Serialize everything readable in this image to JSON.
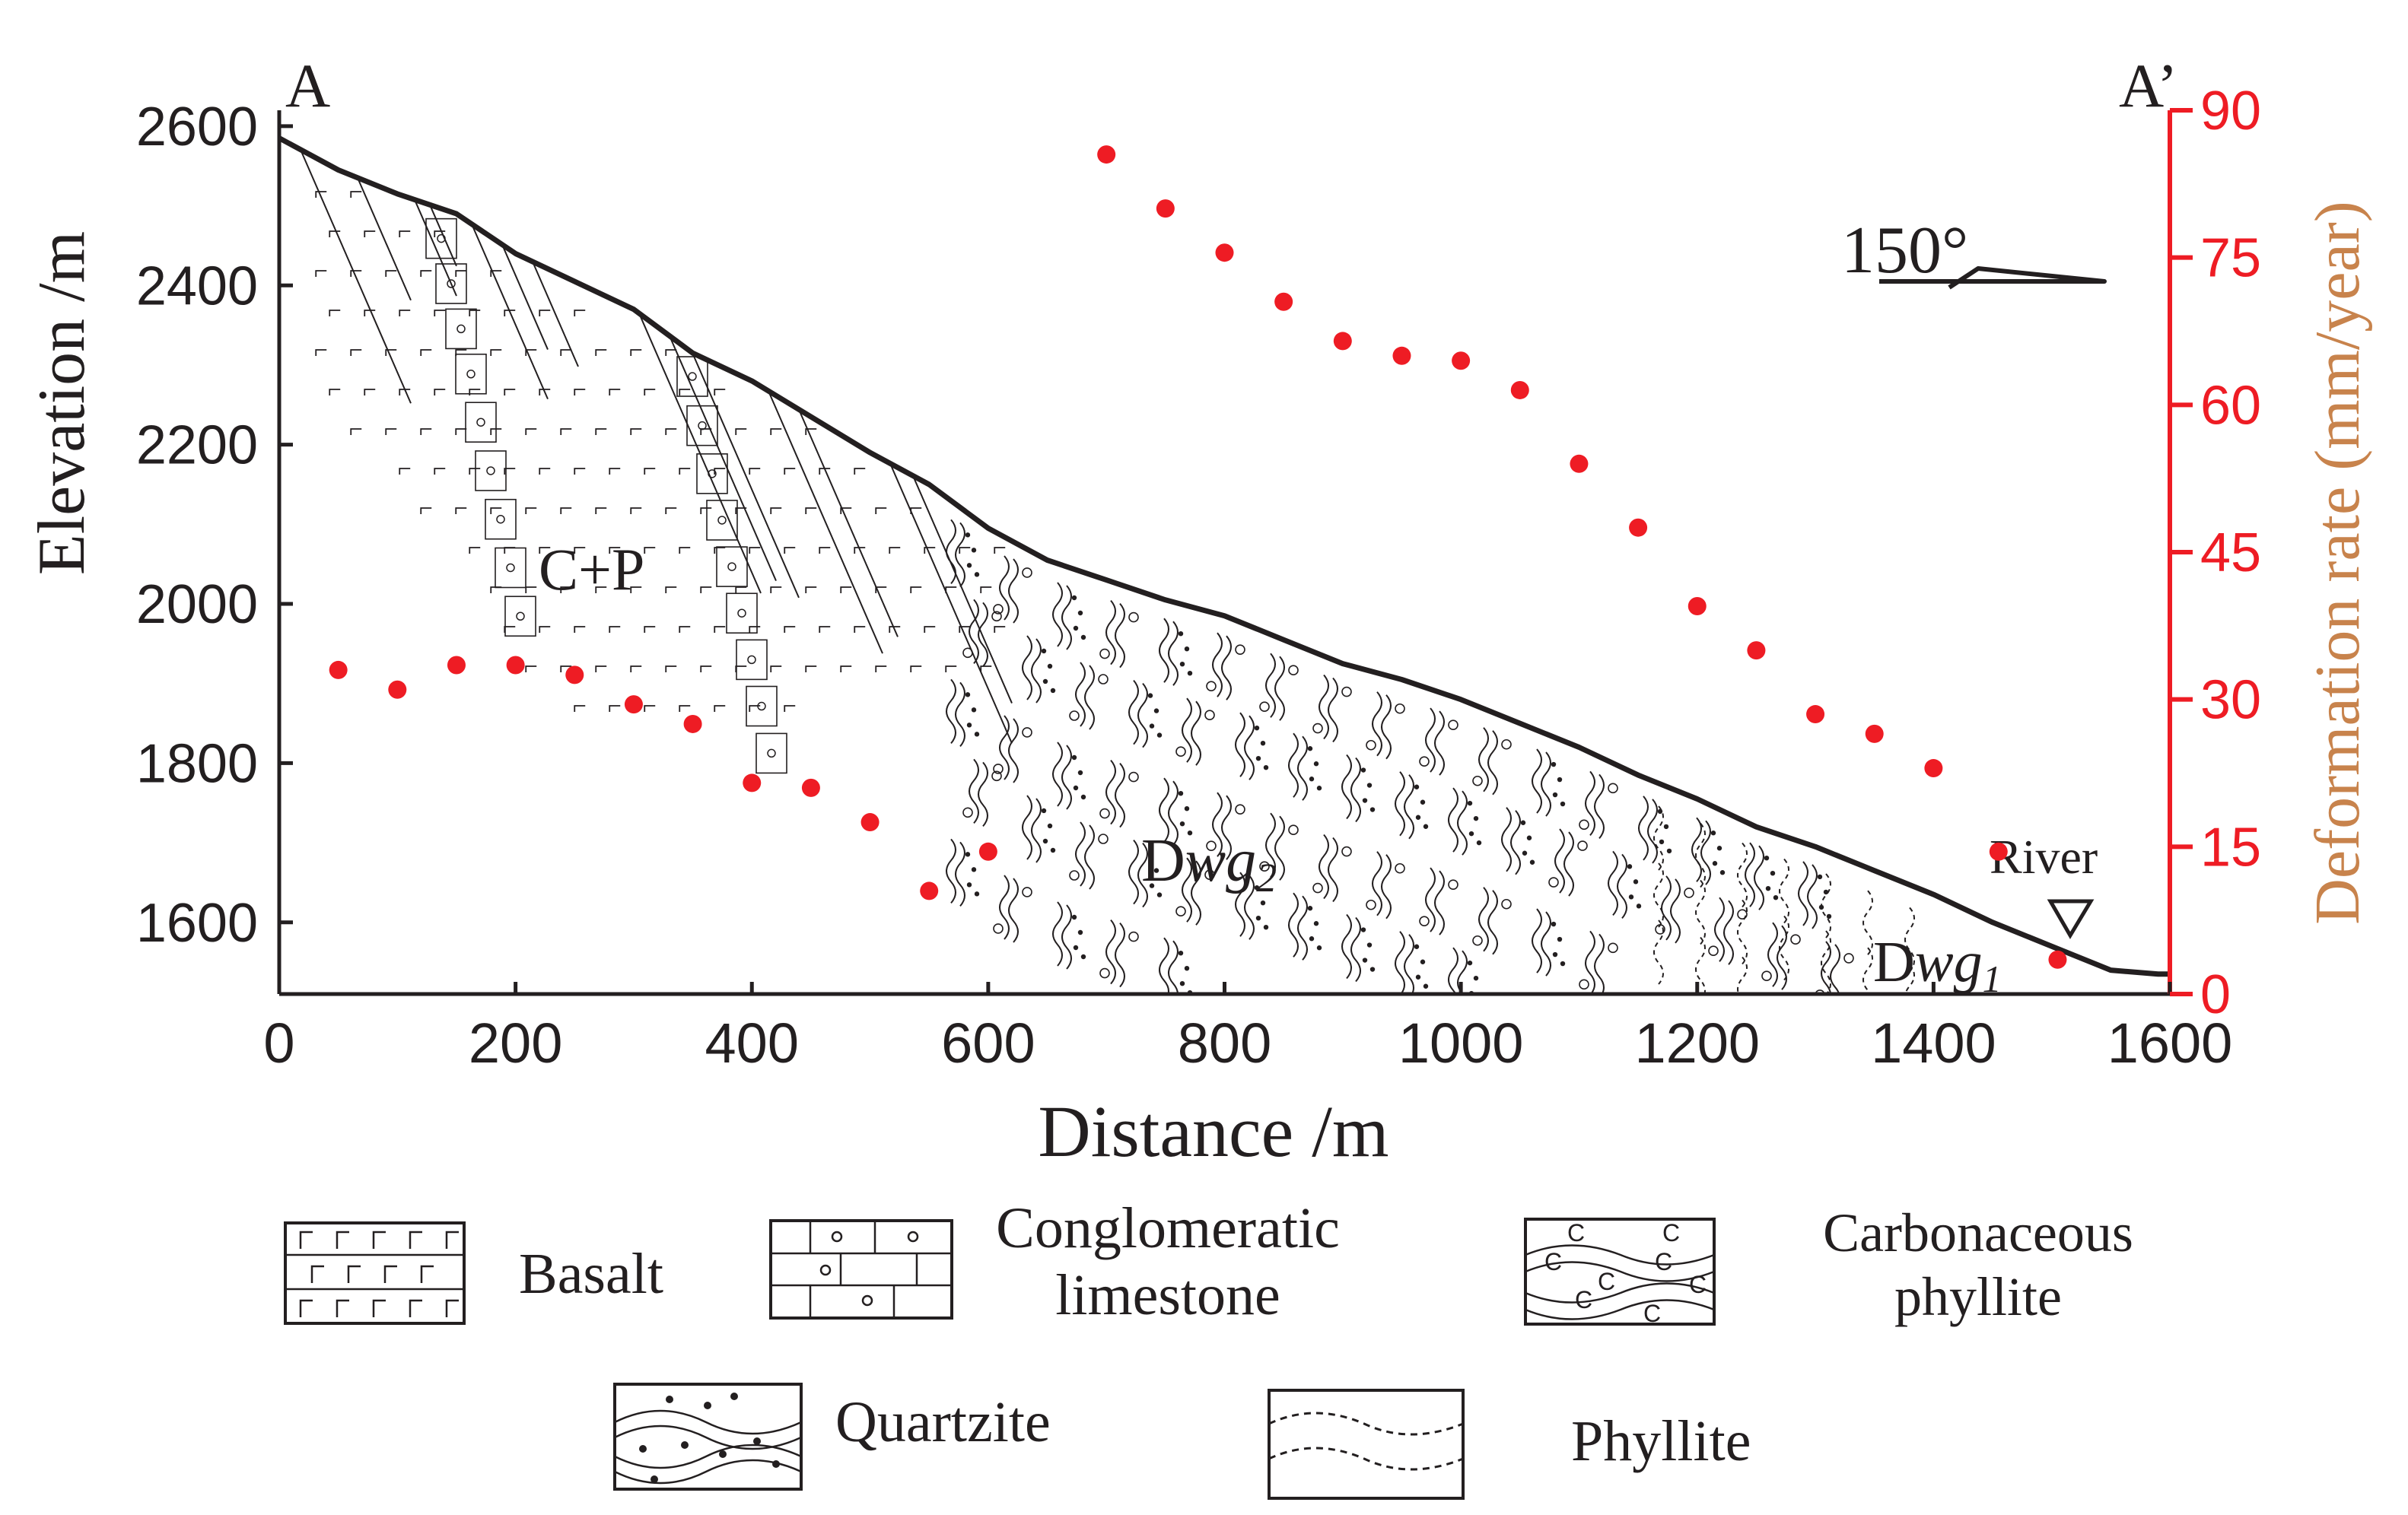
{
  "chart_data": {
    "type": "scatter",
    "title": "",
    "section_start_label": "A",
    "section_end_label": "A’",
    "xlabel": "Distance /m",
    "ylabel": "Elevation /m",
    "y2label": "Deformation rate (mm/year)",
    "xlim": [
      0,
      1600
    ],
    "ylim": [
      1510,
      2620
    ],
    "y2lim": [
      0,
      90
    ],
    "xticks": [
      0,
      200,
      400,
      600,
      800,
      1000,
      1200,
      1400,
      1600
    ],
    "yticks": [
      1600,
      1800,
      2000,
      2200,
      2400,
      2600
    ],
    "y2ticks": [
      0,
      15,
      30,
      45,
      60,
      75,
      90
    ],
    "colors": {
      "profile": "#231f20",
      "points": "#ee1c24",
      "right_axis": "#ee1c24",
      "right_label": "#c8834c"
    },
    "profile": {
      "name": "Ground surface",
      "x": [
        0,
        50,
        100,
        150,
        200,
        250,
        300,
        350,
        400,
        450,
        500,
        550,
        600,
        650,
        700,
        750,
        800,
        850,
        900,
        950,
        1000,
        1050,
        1100,
        1150,
        1200,
        1250,
        1300,
        1350,
        1400,
        1450,
        1500,
        1550,
        1590,
        1600
      ],
      "elevation": [
        2585,
        2545,
        2515,
        2490,
        2440,
        2405,
        2370,
        2315,
        2280,
        2235,
        2190,
        2150,
        2095,
        2055,
        2030,
        2005,
        1985,
        1955,
        1925,
        1905,
        1880,
        1850,
        1820,
        1785,
        1755,
        1720,
        1695,
        1665,
        1635,
        1600,
        1570,
        1540,
        1535,
        1535
      ]
    },
    "series": [
      {
        "name": "Deformation rate",
        "x": [
          50,
          100,
          150,
          200,
          250,
          300,
          350,
          400,
          450,
          500,
          550,
          600,
          700,
          750,
          800,
          850,
          900,
          950,
          1000,
          1050,
          1100,
          1150,
          1200,
          1250,
          1300,
          1350,
          1400,
          1455,
          1505
        ],
        "values": [
          33,
          31,
          33.5,
          33.5,
          32.5,
          29.5,
          27.5,
          21.5,
          21,
          17.5,
          10.5,
          14.5,
          85.5,
          80,
          75.5,
          70.5,
          66.5,
          65,
          64.5,
          61.5,
          54,
          47.5,
          39.5,
          35,
          28.5,
          26.5,
          23,
          14.5,
          3.5
        ]
      }
    ],
    "annotations": {
      "unit_cp": "C+P",
      "unit_dwg2_prefix": "D",
      "unit_dwg2_italic": "wg",
      "unit_dwg2_sub": "2",
      "unit_dwg1_prefix": "D",
      "unit_dwg1_italic": "wg",
      "unit_dwg1_sub": "1",
      "river": "River",
      "orientation": "150°"
    },
    "legend": [
      {
        "pattern": "basalt",
        "label": "Basalt"
      },
      {
        "pattern": "conglomeratic-limestone",
        "label": "Conglomeratic limestone"
      },
      {
        "pattern": "carbonaceous-phyllite",
        "label": "Carbonaceous phyllite"
      },
      {
        "pattern": "quartzite",
        "label": "Quartzite"
      },
      {
        "pattern": "phyllite",
        "label": "Phyllite"
      }
    ]
  }
}
